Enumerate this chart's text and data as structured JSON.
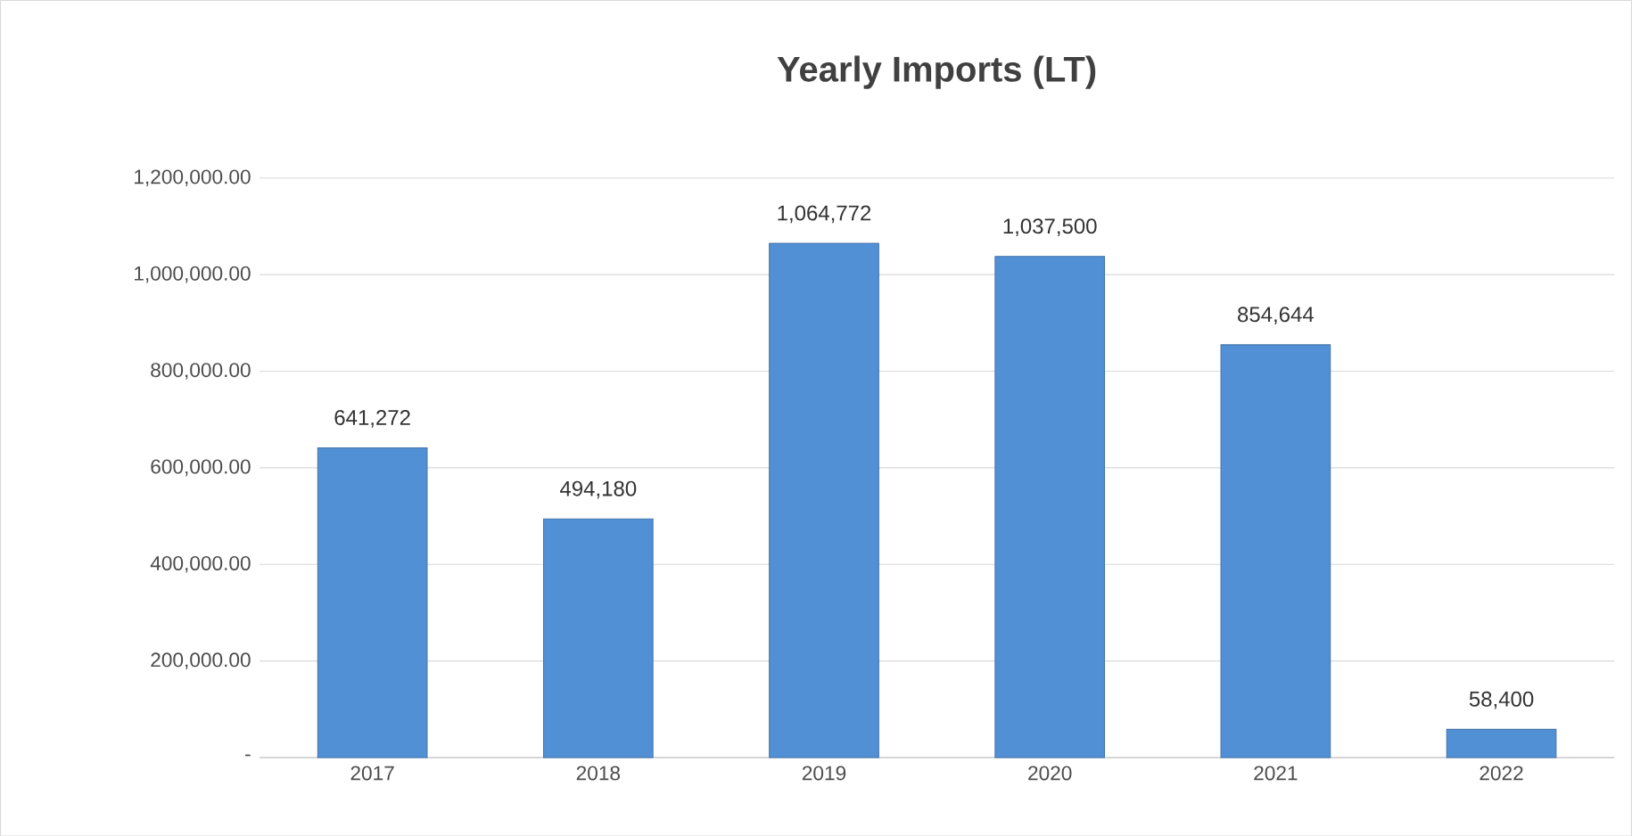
{
  "chart_data": {
    "type": "bar",
    "title": "Yearly Imports (LT)",
    "categories": [
      "2017",
      "2018",
      "2019",
      "2020",
      "2021",
      "2022"
    ],
    "values": [
      641272,
      494180,
      1064772,
      1037500,
      854644,
      58400
    ],
    "value_labels": [
      "641,272",
      "494,180",
      "1,064,772",
      "1,037,500",
      "854,644",
      "58,400"
    ],
    "color": "#5290d6",
    "ylim": [
      0,
      1200000
    ],
    "yticks": [
      {
        "value": 0,
        "label": "-"
      },
      {
        "value": 200000,
        "label": "200,000.00"
      },
      {
        "value": 400000,
        "label": "400,000.00"
      },
      {
        "value": 600000,
        "label": "600,000.00"
      },
      {
        "value": 800000,
        "label": "800,000.00"
      },
      {
        "value": 1000000,
        "label": "1,000,000.00"
      },
      {
        "value": 1200000,
        "label": "1,200,000.00"
      }
    ],
    "grid": "y"
  }
}
